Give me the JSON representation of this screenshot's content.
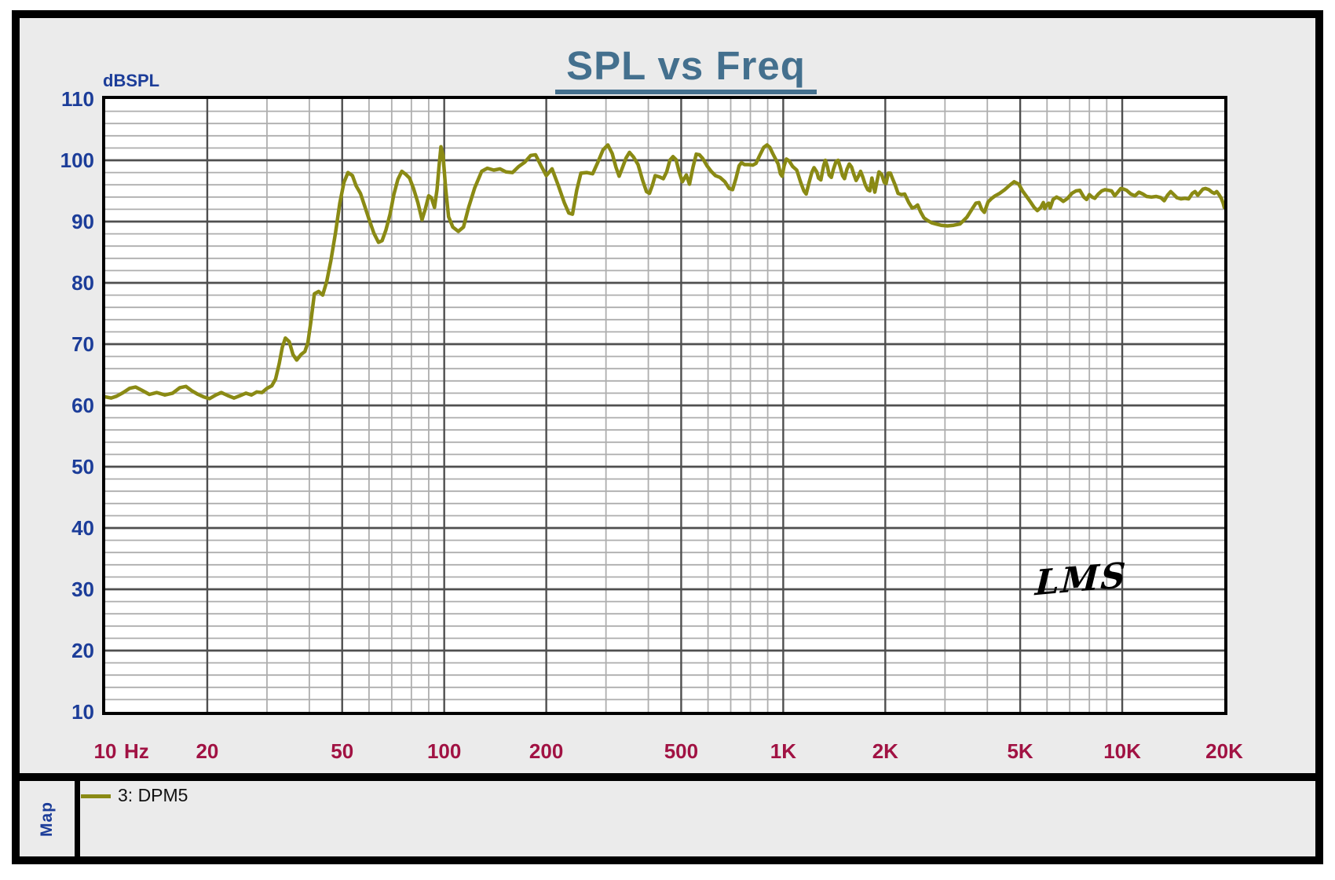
{
  "chart": {
    "title": "SPL vs Freq",
    "y_axis_label": "dBSPL",
    "x_unit": "Hz",
    "signature": "LMS"
  },
  "legend": {
    "map_label": "Map",
    "entries": [
      {
        "label": "3: DPM5",
        "color": "#8a8a14"
      }
    ]
  },
  "colors": {
    "panel_bg": "#ebebeb",
    "plot_bg": "#ffffff",
    "frame": "#000000",
    "title": "#44708e",
    "y_label": "#1c3d99",
    "x_label": "#a11243",
    "grid_major": "#4f4f4f",
    "grid_minor": "#aeaeae",
    "curve": "#8a8a14"
  },
  "chart_data": {
    "type": "line",
    "title": "SPL vs Freq",
    "ylabel": "dBSPL",
    "x_unit": "Hz",
    "x_scale": "log",
    "xlim": [
      10,
      20000
    ],
    "ylim": [
      10,
      110
    ],
    "y_major_step": 10,
    "y_minor_step": 2,
    "grid": true,
    "legend_position": "bottom-left",
    "y_ticks": [
      110,
      100,
      90,
      80,
      70,
      60,
      50,
      40,
      30,
      20,
      10
    ],
    "x_ticks": [
      {
        "label": "10",
        "f": 10
      },
      {
        "label": "20",
        "f": 20
      },
      {
        "label": "50",
        "f": 50
      },
      {
        "label": "100",
        "f": 100
      },
      {
        "label": "200",
        "f": 200
      },
      {
        "label": "500",
        "f": 500
      },
      {
        "label": "1K",
        "f": 1000
      },
      {
        "label": "2K",
        "f": 2000
      },
      {
        "label": "5K",
        "f": 5000
      },
      {
        "label": "10K",
        "f": 10000
      },
      {
        "label": "20K",
        "f": 20000
      }
    ],
    "x_major_lines": [
      20,
      50,
      100,
      200,
      500,
      1000,
      2000,
      5000,
      10000
    ],
    "series": [
      {
        "name": "3: DPM5",
        "color": "#8a8a14",
        "points": [
          [
            10,
            61.4
          ],
          [
            10.4,
            61.2
          ],
          [
            10.8,
            61.5
          ],
          [
            11.3,
            62.1
          ],
          [
            11.8,
            62.8
          ],
          [
            12.3,
            63.0
          ],
          [
            12.9,
            62.4
          ],
          [
            13.5,
            61.8
          ],
          [
            14.2,
            62.1
          ],
          [
            15,
            61.7
          ],
          [
            15.8,
            62.0
          ],
          [
            16.6,
            62.9
          ],
          [
            17.3,
            63.1
          ],
          [
            18,
            62.4
          ],
          [
            18.8,
            61.8
          ],
          [
            19.5,
            61.4
          ],
          [
            20.3,
            61.1
          ],
          [
            21.2,
            61.7
          ],
          [
            22,
            62.1
          ],
          [
            23,
            61.6
          ],
          [
            24,
            61.2
          ],
          [
            25,
            61.6
          ],
          [
            26,
            62.0
          ],
          [
            27,
            61.7
          ],
          [
            28,
            62.2
          ],
          [
            29,
            62.1
          ],
          [
            30,
            62.8
          ],
          [
            31,
            63.2
          ],
          [
            31.8,
            64.3
          ],
          [
            32.6,
            66.8
          ],
          [
            33.3,
            69.5
          ],
          [
            34,
            71.0
          ],
          [
            34.9,
            70.4
          ],
          [
            35.8,
            68.3
          ],
          [
            36.7,
            67.4
          ],
          [
            37.8,
            68.3
          ],
          [
            38.8,
            68.8
          ],
          [
            39.6,
            70.2
          ],
          [
            40.4,
            73.6
          ],
          [
            41.4,
            78.2
          ],
          [
            42.6,
            78.6
          ],
          [
            43.8,
            78.0
          ],
          [
            45,
            80.2
          ],
          [
            46.3,
            83.6
          ],
          [
            47.8,
            88.2
          ],
          [
            49.2,
            93.0
          ],
          [
            50.6,
            96.4
          ],
          [
            52,
            98.0
          ],
          [
            53.6,
            97.5
          ],
          [
            55,
            95.8
          ],
          [
            56.6,
            94.6
          ],
          [
            58.2,
            92.6
          ],
          [
            60,
            90.4
          ],
          [
            62,
            88.1
          ],
          [
            64,
            86.6
          ],
          [
            65.6,
            86.9
          ],
          [
            67.3,
            88.6
          ],
          [
            69.2,
            91.2
          ],
          [
            71,
            94.4
          ],
          [
            73,
            96.9
          ],
          [
            75,
            98.2
          ],
          [
            77,
            97.7
          ],
          [
            79,
            97.1
          ],
          [
            81.2,
            95.4
          ],
          [
            83.6,
            93.1
          ],
          [
            86,
            90.3
          ],
          [
            88,
            92.1
          ],
          [
            90,
            94.2
          ],
          [
            91.6,
            93.9
          ],
          [
            93.6,
            92.3
          ],
          [
            95.2,
            95.2
          ],
          [
            96.6,
            99.2
          ],
          [
            97.8,
            102.2
          ],
          [
            99.2,
            100.8
          ],
          [
            101,
            95.4
          ],
          [
            103,
            90.8
          ],
          [
            106,
            89.1
          ],
          [
            110,
            88.4
          ],
          [
            114,
            89.1
          ],
          [
            118,
            92.3
          ],
          [
            123,
            95.5
          ],
          [
            129,
            98.2
          ],
          [
            134,
            98.7
          ],
          [
            140,
            98.4
          ],
          [
            146,
            98.6
          ],
          [
            152,
            98.1
          ],
          [
            159,
            98.0
          ],
          [
            166,
            99.0
          ],
          [
            173,
            99.7
          ],
          [
            180,
            100.8
          ],
          [
            186,
            100.9
          ],
          [
            193,
            99.1
          ],
          [
            200,
            97.5
          ],
          [
            208,
            98.6
          ],
          [
            217,
            95.9
          ],
          [
            226,
            93.1
          ],
          [
            233,
            91.4
          ],
          [
            239,
            91.2
          ],
          [
            246,
            95.1
          ],
          [
            253,
            97.9
          ],
          [
            263,
            98.0
          ],
          [
            274,
            97.8
          ],
          [
            284,
            99.7
          ],
          [
            294,
            101.7
          ],
          [
            304,
            102.5
          ],
          [
            313,
            101.1
          ],
          [
            321,
            98.9
          ],
          [
            328,
            97.4
          ],
          [
            336,
            98.9
          ],
          [
            344,
            100.4
          ],
          [
            352,
            101.3
          ],
          [
            362,
            100.5
          ],
          [
            373,
            99.3
          ],
          [
            385,
            96.7
          ],
          [
            395,
            94.9
          ],
          [
            403,
            94.6
          ],
          [
            411,
            95.9
          ],
          [
            419,
            97.5
          ],
          [
            431,
            97.3
          ],
          [
            443,
            97.0
          ],
          [
            453,
            98.1
          ],
          [
            463,
            100.0
          ],
          [
            473,
            100.6
          ],
          [
            483,
            100.1
          ],
          [
            493,
            98.1
          ],
          [
            504,
            96.5
          ],
          [
            518,
            97.6
          ],
          [
            529,
            96.1
          ],
          [
            542,
            98.9
          ],
          [
            554,
            101.0
          ],
          [
            566,
            100.9
          ],
          [
            579,
            100.3
          ],
          [
            596,
            99.1
          ],
          [
            613,
            98.2
          ],
          [
            631,
            97.5
          ],
          [
            651,
            97.2
          ],
          [
            673,
            96.5
          ],
          [
            693,
            95.4
          ],
          [
            709,
            95.2
          ],
          [
            726,
            97.1
          ],
          [
            741,
            99.1
          ],
          [
            753,
            99.6
          ],
          [
            769,
            99.3
          ],
          [
            791,
            99.3
          ],
          [
            813,
            99.2
          ],
          [
            831,
            99.5
          ],
          [
            851,
            100.7
          ],
          [
            876,
            102.1
          ],
          [
            896,
            102.5
          ],
          [
            913,
            102.1
          ],
          [
            931,
            101.1
          ],
          [
            949,
            100.2
          ],
          [
            966,
            99.4
          ],
          [
            981,
            97.8
          ],
          [
            993,
            97.4
          ],
          [
            1006,
            99.1
          ],
          [
            1021,
            100.2
          ],
          [
            1041,
            99.9
          ],
          [
            1066,
            99.0
          ],
          [
            1096,
            98.4
          ],
          [
            1126,
            96.4
          ],
          [
            1151,
            95.0
          ],
          [
            1169,
            94.5
          ],
          [
            1191,
            96.3
          ],
          [
            1216,
            98.1
          ],
          [
            1233,
            98.8
          ],
          [
            1256,
            98.1
          ],
          [
            1271,
            97.1
          ],
          [
            1291,
            96.8
          ],
          [
            1316,
            99.1
          ],
          [
            1331,
            100.0
          ],
          [
            1351,
            98.9
          ],
          [
            1366,
            97.6
          ],
          [
            1386,
            97.2
          ],
          [
            1406,
            98.5
          ],
          [
            1431,
            99.8
          ],
          [
            1451,
            100.0
          ],
          [
            1473,
            98.9
          ],
          [
            1496,
            97.5
          ],
          [
            1516,
            97.0
          ],
          [
            1541,
            98.5
          ],
          [
            1566,
            99.4
          ],
          [
            1591,
            98.9
          ],
          [
            1616,
            97.7
          ],
          [
            1641,
            96.7
          ],
          [
            1666,
            97.4
          ],
          [
            1691,
            98.2
          ],
          [
            1716,
            97.3
          ],
          [
            1746,
            96.0
          ],
          [
            1776,
            95.2
          ],
          [
            1801,
            95.0
          ],
          [
            1826,
            97.1
          ],
          [
            1846,
            95.9
          ],
          [
            1863,
            94.8
          ],
          [
            1891,
            96.6
          ],
          [
            1916,
            98.1
          ],
          [
            1951,
            97.7
          ],
          [
            1986,
            96.4
          ],
          [
            2011,
            96.2
          ],
          [
            2041,
            97.9
          ],
          [
            2071,
            97.9
          ],
          [
            2101,
            97.0
          ],
          [
            2141,
            95.9
          ],
          [
            2181,
            94.6
          ],
          [
            2231,
            94.4
          ],
          [
            2281,
            94.5
          ],
          [
            2346,
            93.1
          ],
          [
            2401,
            92.2
          ],
          [
            2451,
            92.4
          ],
          [
            2491,
            92.7
          ],
          [
            2541,
            91.6
          ],
          [
            2601,
            90.6
          ],
          [
            2661,
            90.2
          ],
          [
            2741,
            89.8
          ],
          [
            2821,
            89.6
          ],
          [
            2921,
            89.4
          ],
          [
            3051,
            89.3
          ],
          [
            3181,
            89.4
          ],
          [
            3321,
            89.6
          ],
          [
            3481,
            90.7
          ],
          [
            3601,
            92.0
          ],
          [
            3701,
            93.0
          ],
          [
            3781,
            93.1
          ],
          [
            3851,
            92.0
          ],
          [
            3921,
            91.5
          ],
          [
            4021,
            93.2
          ],
          [
            4121,
            93.8
          ],
          [
            4221,
            94.2
          ],
          [
            4351,
            94.6
          ],
          [
            4501,
            95.2
          ],
          [
            4651,
            95.9
          ],
          [
            4801,
            96.5
          ],
          [
            4951,
            96.1
          ],
          [
            5081,
            95.0
          ],
          [
            5221,
            94.1
          ],
          [
            5361,
            93.2
          ],
          [
            5501,
            92.3
          ],
          [
            5621,
            91.8
          ],
          [
            5751,
            92.3
          ],
          [
            5851,
            93.1
          ],
          [
            5911,
            92.1
          ],
          [
            6001,
            92.8
          ],
          [
            6071,
            93.0
          ],
          [
            6131,
            92.2
          ],
          [
            6251,
            93.6
          ],
          [
            6401,
            94.0
          ],
          [
            6551,
            93.7
          ],
          [
            6701,
            93.3
          ],
          [
            6901,
            93.8
          ],
          [
            7101,
            94.6
          ],
          [
            7301,
            95.0
          ],
          [
            7501,
            95.1
          ],
          [
            7701,
            94.0
          ],
          [
            7851,
            93.6
          ],
          [
            8001,
            94.4
          ],
          [
            8151,
            94.0
          ],
          [
            8301,
            93.8
          ],
          [
            8501,
            94.5
          ],
          [
            8701,
            95.0
          ],
          [
            8901,
            95.2
          ],
          [
            9101,
            95.1
          ],
          [
            9301,
            95.0
          ],
          [
            9501,
            94.2
          ],
          [
            9701,
            94.8
          ],
          [
            9901,
            95.4
          ],
          [
            10101,
            95.3
          ],
          [
            10301,
            95.1
          ],
          [
            10601,
            94.5
          ],
          [
            10901,
            94.2
          ],
          [
            11201,
            94.8
          ],
          [
            11501,
            94.5
          ],
          [
            11801,
            94.1
          ],
          [
            12201,
            94.0
          ],
          [
            12601,
            94.1
          ],
          [
            13001,
            93.9
          ],
          [
            13301,
            93.4
          ],
          [
            13601,
            94.3
          ],
          [
            13901,
            94.9
          ],
          [
            14201,
            94.4
          ],
          [
            14501,
            93.9
          ],
          [
            14901,
            93.7
          ],
          [
            15301,
            93.8
          ],
          [
            15701,
            93.7
          ],
          [
            16101,
            94.6
          ],
          [
            16401,
            94.9
          ],
          [
            16701,
            94.3
          ],
          [
            17001,
            94.8
          ],
          [
            17301,
            95.3
          ],
          [
            17601,
            95.4
          ],
          [
            18001,
            95.2
          ],
          [
            18401,
            94.8
          ],
          [
            18701,
            94.6
          ],
          [
            19001,
            94.9
          ],
          [
            19301,
            94.4
          ],
          [
            19601,
            93.8
          ],
          [
            19851,
            93.0
          ],
          [
            20000,
            92.3
          ]
        ]
      }
    ]
  }
}
